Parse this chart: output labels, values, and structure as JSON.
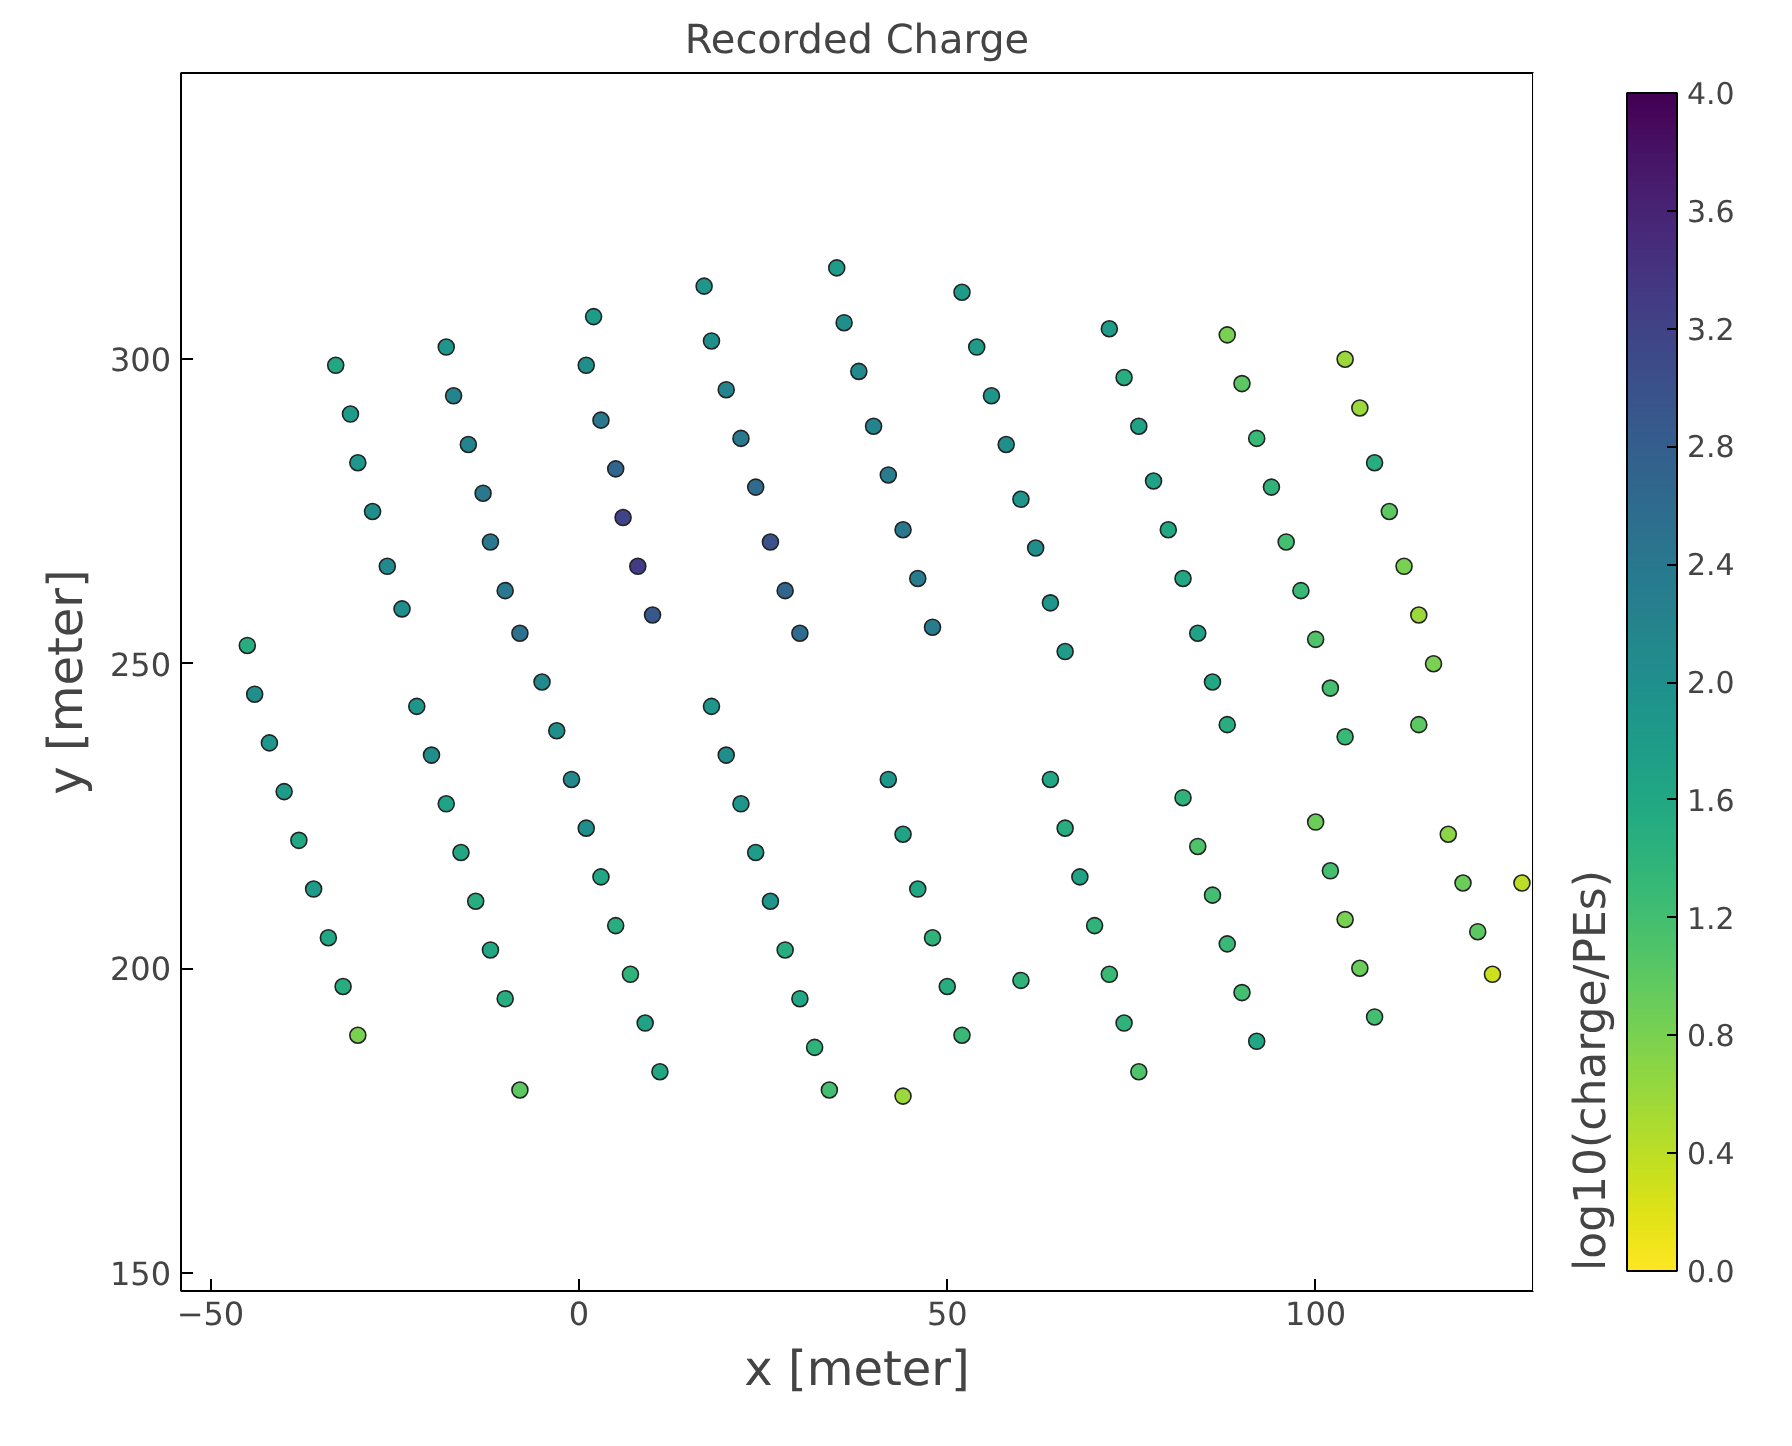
{
  "chart_data": {
    "type": "scatter",
    "title": "Recorded Charge",
    "xlabel": "x [meter]",
    "ylabel": "y [meter]",
    "clabel": "log10(charge/PEs)",
    "xlim": [
      -54,
      129.5
    ],
    "ylim": [
      147,
      347
    ],
    "xticks": [
      -50,
      0,
      50,
      100
    ],
    "yticks": [
      150,
      200,
      250,
      300
    ],
    "clim": [
      0,
      4
    ],
    "cticks": [
      {
        "value": 0,
        "label": "0.0"
      },
      0.4,
      0.8,
      1.2,
      1.6,
      {
        "value": 2,
        "label": "2.0"
      },
      2.4,
      2.8,
      3.2,
      3.6,
      {
        "value": 4,
        "label": "4.0"
      }
    ],
    "grid": false,
    "marker": "circle",
    "x": [
      -33,
      -31,
      -30,
      -28,
      -26,
      -24,
      -18,
      -17,
      -15,
      -13,
      -12,
      -10,
      -8,
      2,
      1,
      3,
      5,
      6,
      8,
      10,
      17,
      18,
      20,
      22,
      24,
      26,
      28,
      30,
      35,
      36,
      38,
      40,
      42,
      44,
      46,
      48,
      52,
      54,
      56,
      58,
      60,
      62,
      64,
      66,
      72,
      74,
      76,
      78,
      80,
      82,
      84,
      86,
      88,
      88,
      90,
      92,
      94,
      96,
      98,
      100,
      102,
      104,
      104,
      106,
      108,
      110,
      112,
      114,
      116,
      114,
      -45,
      -44,
      -42,
      -40,
      -38,
      -36,
      -34,
      -32,
      -30,
      -22,
      -20,
      -18,
      -16,
      -14,
      -12,
      -10,
      -8,
      -5,
      -3,
      -1,
      1,
      3,
      5,
      7,
      9,
      11,
      18,
      20,
      22,
      24,
      26,
      28,
      30,
      32,
      34,
      42,
      44,
      46,
      48,
      50,
      52,
      44,
      64,
      66,
      68,
      70,
      72,
      74,
      76,
      60,
      82,
      84,
      86,
      88,
      90,
      92,
      100,
      102,
      104,
      106,
      108,
      118,
      120,
      122,
      124,
      128
    ],
    "values": [
      299,
      291,
      283,
      275,
      266,
      259,
      302,
      294,
      286,
      278,
      270,
      262,
      255,
      307,
      299,
      290,
      282,
      274,
      266,
      258,
      312,
      303,
      295,
      287,
      279,
      270,
      262,
      255,
      315,
      306,
      298,
      289,
      281,
      272,
      264,
      256,
      311,
      302,
      294,
      286,
      277,
      269,
      260,
      252,
      305,
      297,
      289,
      280,
      272,
      264,
      255,
      247,
      240,
      304,
      296,
      287,
      279,
      270,
      262,
      254,
      246,
      238,
      300,
      292,
      283,
      275,
      266,
      258,
      250,
      240,
      253,
      245,
      237,
      229,
      221,
      213,
      205,
      197,
      189,
      243,
      235,
      227,
      219,
      211,
      203,
      195,
      180,
      247,
      239,
      231,
      223,
      215,
      207,
      199,
      191,
      183,
      243,
      235,
      227,
      219,
      211,
      203,
      195,
      187,
      180,
      231,
      222,
      213,
      205,
      197,
      189,
      179,
      231,
      223,
      215,
      207,
      199,
      191,
      183,
      198,
      228,
      220,
      212,
      204,
      196,
      188,
      224,
      216,
      208,
      200,
      192,
      222,
      214,
      206,
      199,
      214
    ],
    "cvalues": [
      1.6,
      1.8,
      1.9,
      2.0,
      2.1,
      2.0,
      1.9,
      2.2,
      2.2,
      2.4,
      2.4,
      2.4,
      2.5,
      1.8,
      2.0,
      2.4,
      2.7,
      3.2,
      3.3,
      2.9,
      1.9,
      2.0,
      2.2,
      2.4,
      2.6,
      3.0,
      2.7,
      2.6,
      1.8,
      2.0,
      2.1,
      2.2,
      2.3,
      2.4,
      2.3,
      2.3,
      1.8,
      1.8,
      1.9,
      2.0,
      1.9,
      2.0,
      1.9,
      1.8,
      1.8,
      1.5,
      1.7,
      1.7,
      1.6,
      1.6,
      1.7,
      1.6,
      1.5,
      0.8,
      1.0,
      1.3,
      1.4,
      1.2,
      1.3,
      1.1,
      1.2,
      1.3,
      0.6,
      0.6,
      1.5,
      1.0,
      0.8,
      0.6,
      0.8,
      1.0,
      1.5,
      2.0,
      1.9,
      1.8,
      1.6,
      1.8,
      1.6,
      1.5,
      0.8,
      1.9,
      2.0,
      1.7,
      1.6,
      1.5,
      1.6,
      1.5,
      1.0,
      2.1,
      2.0,
      2.1,
      2.0,
      1.6,
      1.5,
      1.4,
      1.7,
      1.6,
      1.9,
      2.0,
      1.9,
      1.8,
      1.9,
      1.5,
      1.6,
      1.4,
      1.2,
      1.9,
      1.7,
      1.6,
      1.4,
      1.5,
      1.3,
      0.6,
      1.6,
      1.5,
      1.7,
      1.4,
      1.3,
      1.4,
      1.1,
      1.4,
      1.4,
      1.1,
      1.2,
      1.3,
      1.2,
      1.6,
      0.9,
      1.2,
      0.8,
      0.9,
      1.2,
      0.7,
      0.9,
      1.0,
      0.3,
      0.4
    ]
  }
}
